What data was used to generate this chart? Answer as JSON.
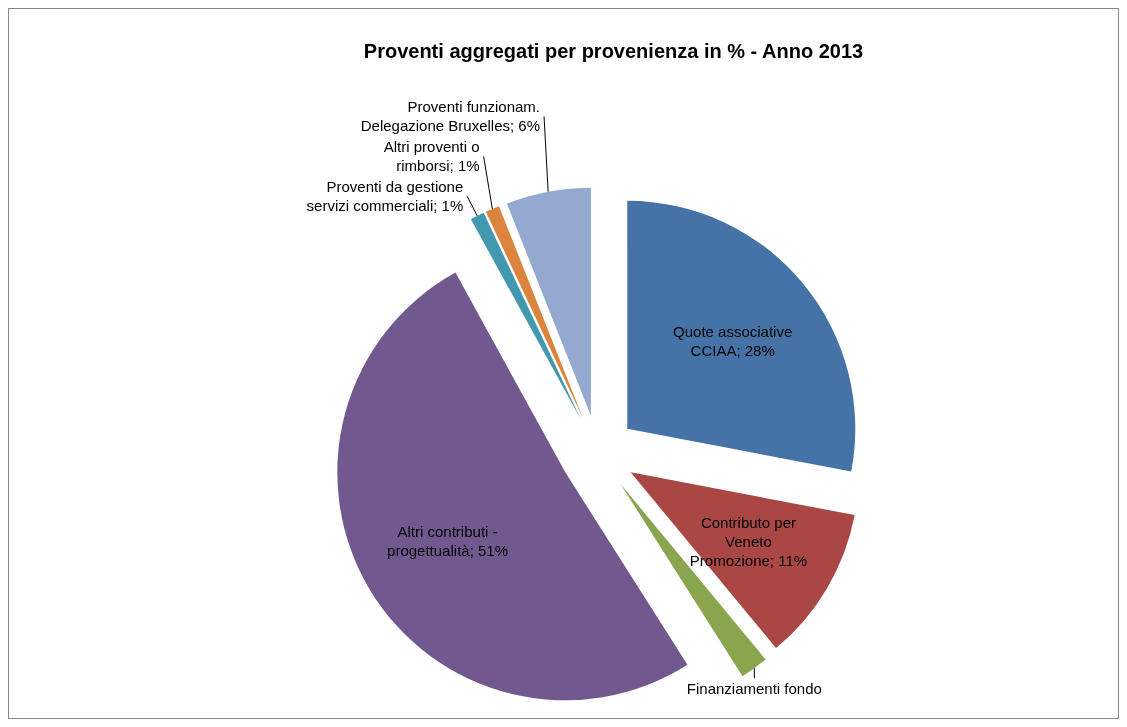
{
  "chart_data": {
    "type": "pie",
    "title": "Proventi aggregati per provenienza in % - Anno 2013",
    "categories": [
      "Quote associative CCIAA",
      "Contributo per Veneto Promozione",
      "Finanziamenti fondo",
      "Altri contributi - progettualità",
      "Proventi da gestione servizi commerciali",
      "Altri proventi o rimborsi",
      "Proventi funzionam. Delegazione Bruxelles"
    ],
    "values": [
      28,
      11,
      2,
      51,
      1,
      1,
      6
    ],
    "value_labels": [
      "28%",
      "11%",
      null,
      "51%",
      "1%",
      "1%",
      "6%"
    ],
    "colors": [
      "#4673a7",
      "#aa4644",
      "#89a54e",
      "#71588f",
      "#4198af",
      "#db843d",
      "#93a9cf"
    ]
  }
}
